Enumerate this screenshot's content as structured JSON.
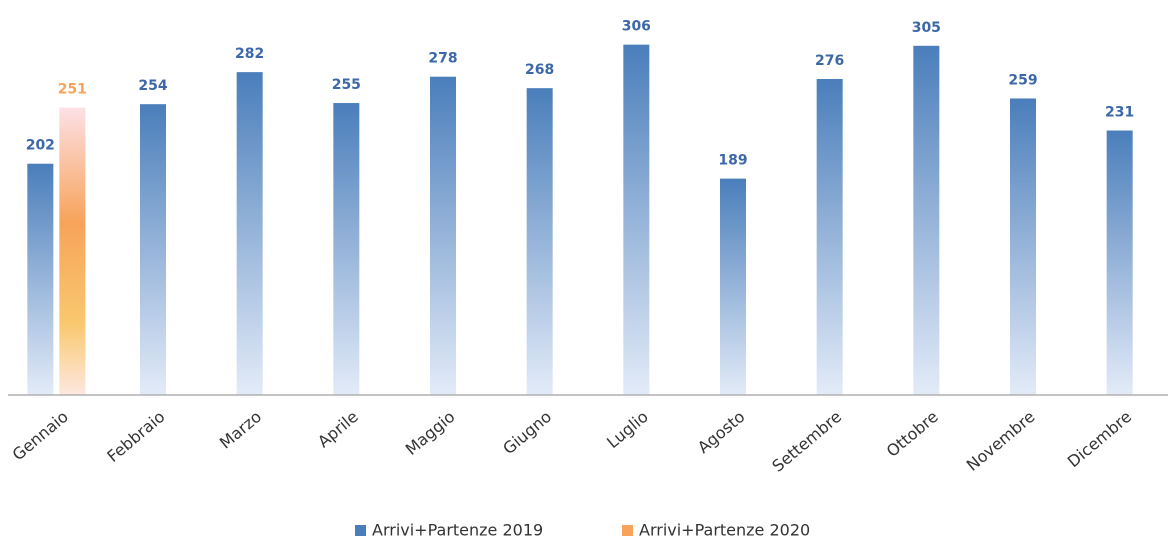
{
  "chart_data": {
    "type": "bar",
    "categories": [
      "Gennaio",
      "Febbraio",
      "Marzo",
      "Aprile",
      "Maggio",
      "Giugno",
      "Luglio",
      "Agosto",
      "Settembre",
      "Ottobre",
      "Novembre",
      "Dicembre"
    ],
    "series": [
      {
        "name": "Arrivi+Partenze 2019",
        "color": "#4a7ebb",
        "values": [
          202,
          254,
          282,
          255,
          278,
          268,
          306,
          189,
          276,
          305,
          259,
          231
        ]
      },
      {
        "name": "Arrivi+Partenze 2020",
        "color": "#f7a35a",
        "values": [
          251,
          null,
          null,
          null,
          null,
          null,
          null,
          null,
          null,
          null,
          null,
          null
        ]
      }
    ],
    "ylim": [
      0,
      345
    ]
  }
}
